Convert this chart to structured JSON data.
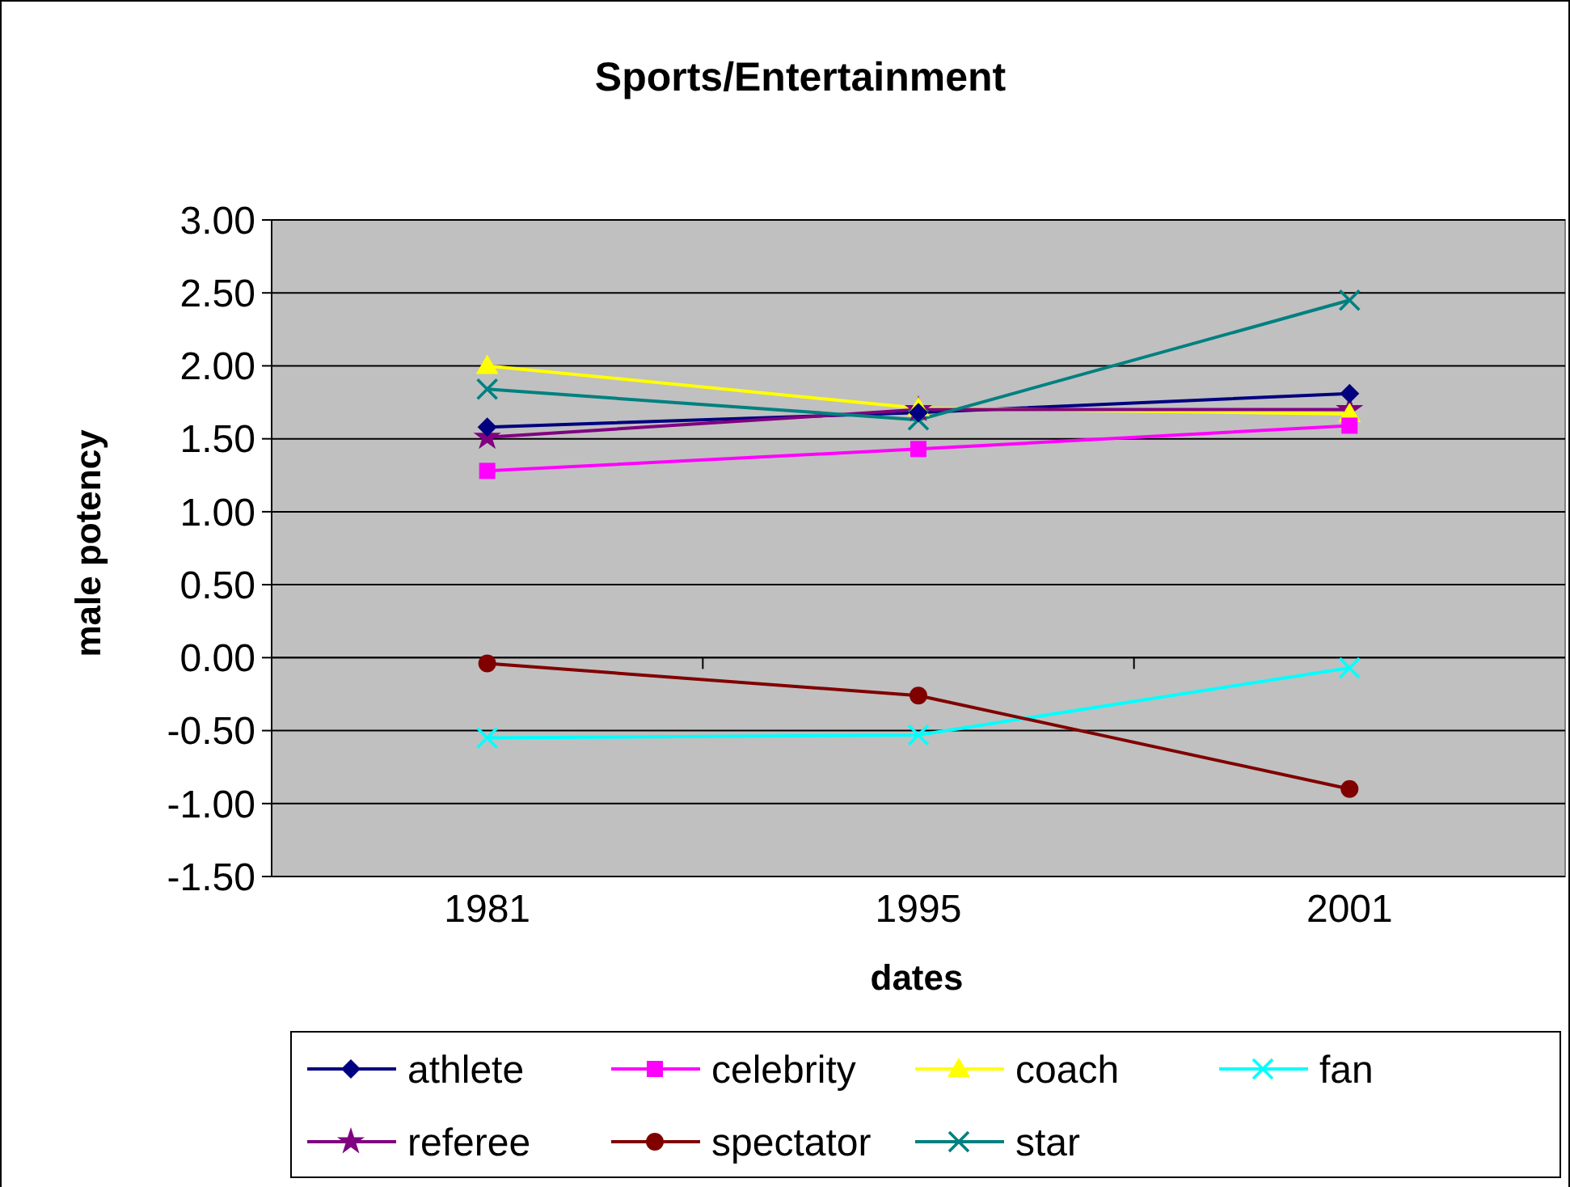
{
  "chart_data": {
    "type": "line",
    "title": "Sports/Entertainment",
    "xlabel": "dates",
    "ylabel": "male potency",
    "categories": [
      "1981",
      "1995",
      "2001"
    ],
    "series": [
      {
        "name": "athlete",
        "color": "#000080",
        "values": [
          1.58,
          1.68,
          1.81
        ],
        "marker": "diamond"
      },
      {
        "name": "celebrity",
        "color": "#ff00ff",
        "values": [
          1.28,
          1.43,
          1.59
        ],
        "marker": "square"
      },
      {
        "name": "coach",
        "color": "#ffff00",
        "values": [
          2.0,
          1.71,
          1.67
        ],
        "marker": "triangle"
      },
      {
        "name": "fan",
        "color": "#00ffff",
        "values": [
          -0.55,
          -0.53,
          -0.07
        ],
        "marker": "cross"
      },
      {
        "name": "referee",
        "color": "#800080",
        "values": [
          1.51,
          1.7,
          1.7
        ],
        "marker": "star"
      },
      {
        "name": "spectator",
        "color": "#800000",
        "values": [
          -0.04,
          -0.26,
          -0.9
        ],
        "marker": "circle"
      },
      {
        "name": "star",
        "color": "#008080",
        "values": [
          1.84,
          1.63,
          2.45
        ],
        "marker": "cross"
      }
    ],
    "ylim": [
      -1.5,
      3.0
    ],
    "yticks": [
      {
        "value": -1.5,
        "label": "-1.50"
      },
      {
        "value": -1.0,
        "label": "-1.00"
      },
      {
        "value": -0.5,
        "label": "-0.50"
      },
      {
        "value": 0,
        "label": "0.00"
      },
      {
        "value": 0.5,
        "label": "0.50"
      },
      {
        "value": 1.0,
        "label": "1.00"
      },
      {
        "value": 1.5,
        "label": "1.50"
      },
      {
        "value": 2.0,
        "label": "2.00"
      },
      {
        "value": 2.5,
        "label": "2.50"
      },
      {
        "value": 3.0,
        "label": "3.00"
      }
    ],
    "grid": "y",
    "legend": "bottom",
    "line_style": "solid"
  }
}
